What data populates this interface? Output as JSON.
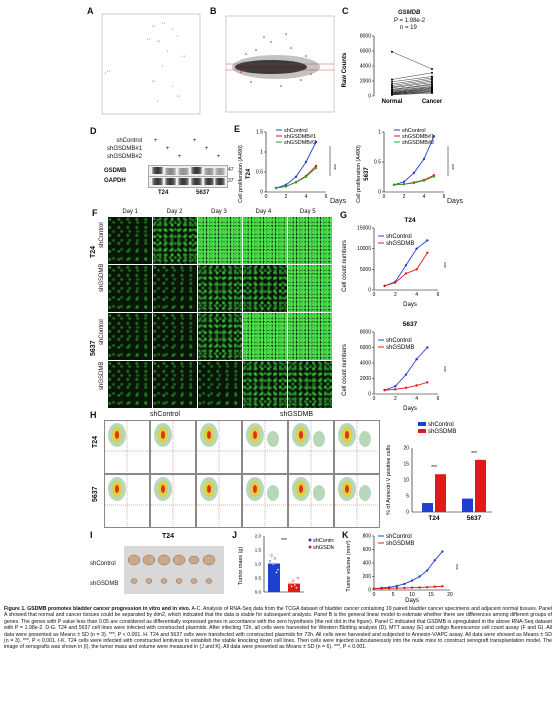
{
  "panels": {
    "A": {
      "label": "A"
    },
    "B": {
      "label": "B"
    },
    "C": {
      "label": "C",
      "title": "GSMDB",
      "pvalue": "P = 1.98e-2",
      "n": "n = 19",
      "ylabel": "Raw Counts",
      "xcats": [
        "Normal",
        "Cancer"
      ],
      "yticks": [
        "0",
        "2000",
        "4000",
        "6000",
        "8000"
      ]
    },
    "D": {
      "label": "D",
      "rows": [
        "shControl",
        "shGSDMB#1",
        "shGSDMB#2"
      ],
      "signs": [
        [
          "+",
          "",
          "",
          "+",
          "",
          ""
        ],
        [
          "",
          "+",
          "",
          "",
          "+",
          ""
        ],
        [
          "",
          "",
          "+",
          "",
          "",
          "+"
        ]
      ],
      "bands": [
        "GSDMB",
        "GAPDH"
      ],
      "kd": [
        "47",
        "37"
      ],
      "cells": [
        "T24",
        "5637"
      ]
    },
    "E": {
      "label": "E",
      "xlabel": "Days",
      "ylabel": "Cell proliferation (A490)",
      "cells": [
        "T24",
        "5637"
      ],
      "legend": [
        "shControl",
        "shGSDMB#1",
        "shGSDMB#2"
      ],
      "stars": "***"
    },
    "F": {
      "label": "F",
      "days": [
        "Day 1",
        "Day 2",
        "Day 3",
        "Day 4",
        "Day 5"
      ],
      "cells": [
        "T24",
        "5637"
      ],
      "groups": [
        "shControl",
        "shGSDMB",
        "shControl",
        "shGSDMB"
      ]
    },
    "G": {
      "label": "G",
      "xlabel": "Days",
      "ylabel": "Cell count numbers",
      "legend": [
        "shControl",
        "shGSDMB"
      ],
      "titles": [
        "T24",
        "5637"
      ],
      "stars": "***"
    },
    "H": {
      "label": "H",
      "groups": [
        "shControl",
        "shGSDMB"
      ],
      "cells": [
        "T24",
        "5637"
      ],
      "ylabel": "% of Annexin V positive cells",
      "legend": [
        "shControl",
        "shGSDMB"
      ],
      "stars": "***"
    },
    "I": {
      "label": "I",
      "title": "T24",
      "rows": [
        "shControl",
        "shGSDMB"
      ]
    },
    "J": {
      "label": "J",
      "ylabel": "Tumor mass (g)",
      "legend": [
        "shControl",
        "shGSDMB"
      ],
      "stars": "***"
    },
    "K": {
      "label": "K",
      "ylabel": "Tumor volume (mm³)",
      "xlabel": "Days",
      "legend": [
        "shControl",
        "shGSDMB"
      ],
      "stars": "***"
    }
  },
  "colors": {
    "control": "#1f3fd0",
    "kd1": "#e01919",
    "kd2": "#2ca02c"
  },
  "chart_data": [
    {
      "id": "C",
      "type": "scatter",
      "title": "GSMDB",
      "categories": [
        "Normal",
        "Cancer"
      ],
      "ylabel": "Raw Counts",
      "ylim": [
        0,
        8000
      ],
      "series": [
        {
          "name": "Normal",
          "values": [
            5900,
            2200,
            1900,
            1600,
            1400,
            1200,
            1100,
            900,
            800,
            700,
            600,
            500,
            450,
            400,
            350,
            300,
            250,
            200,
            150
          ]
        },
        {
          "name": "Cancer",
          "values": [
            3600,
            3100,
            2600,
            2400,
            2200,
            2000,
            1800,
            1600,
            1500,
            1300,
            1200,
            1100,
            1000,
            900,
            800,
            700,
            600,
            500,
            400
          ]
        }
      ]
    },
    {
      "id": "E-T24",
      "type": "line",
      "title": "T24",
      "xlabel": "Days",
      "ylabel": "Cell proliferation (A490)",
      "x": [
        1,
        2,
        3,
        4,
        5
      ],
      "ylim": [
        0,
        1.5
      ],
      "series": [
        {
          "name": "shControl",
          "values": [
            0.1,
            0.18,
            0.38,
            0.75,
            1.25
          ]
        },
        {
          "name": "shGSDMB#1",
          "values": [
            0.1,
            0.14,
            0.25,
            0.4,
            0.65
          ]
        },
        {
          "name": "shGSDMB#2",
          "values": [
            0.1,
            0.14,
            0.24,
            0.38,
            0.6
          ]
        }
      ]
    },
    {
      "id": "E-5637",
      "type": "line",
      "title": "5637",
      "xlabel": "Days",
      "ylabel": "Cell proliferation (A490)",
      "x": [
        1,
        2,
        3,
        4,
        5
      ],
      "ylim": [
        0,
        1.0
      ],
      "series": [
        {
          "name": "shControl",
          "values": [
            0.12,
            0.17,
            0.32,
            0.55,
            0.93
          ]
        },
        {
          "name": "shGSDMB#1",
          "values": [
            0.12,
            0.13,
            0.16,
            0.2,
            0.28
          ]
        },
        {
          "name": "shGSDMB#2",
          "values": [
            0.12,
            0.13,
            0.15,
            0.19,
            0.26
          ]
        }
      ]
    },
    {
      "id": "G-T24",
      "type": "line",
      "title": "T24",
      "xlabel": "Days",
      "ylabel": "Cell count numbers",
      "x": [
        1,
        2,
        3,
        4,
        5
      ],
      "ylim": [
        0,
        15000
      ],
      "series": [
        {
          "name": "shControl",
          "values": [
            1000,
            2000,
            6000,
            10000,
            12000
          ]
        },
        {
          "name": "shGSDMB",
          "values": [
            1000,
            1800,
            4000,
            5000,
            9000
          ]
        }
      ]
    },
    {
      "id": "G-5637",
      "type": "line",
      "title": "5637",
      "xlabel": "Days",
      "ylabel": "Cell count numbers",
      "x": [
        1,
        2,
        3,
        4,
        5
      ],
      "ylim": [
        0,
        8000
      ],
      "series": [
        {
          "name": "shControl",
          "values": [
            500,
            1000,
            2500,
            4500,
            6000
          ]
        },
        {
          "name": "shGSDMB",
          "values": [
            500,
            600,
            800,
            1100,
            1500
          ]
        }
      ]
    },
    {
      "id": "H-bar",
      "type": "bar",
      "categories": [
        "T24",
        "5637"
      ],
      "ylabel": "% of Annexin V positive cells",
      "ylim": [
        0,
        20
      ],
      "series": [
        {
          "name": "shControl",
          "values": [
            2.8,
            4.2
          ]
        },
        {
          "name": "shGSDMB",
          "values": [
            11.8,
            16.3
          ]
        }
      ]
    },
    {
      "id": "J",
      "type": "scatter",
      "categories": [
        "shControl",
        "shGSDMB"
      ],
      "ylabel": "Tumor mass (g)",
      "ylim": [
        0,
        2.0
      ],
      "series": [
        {
          "name": "shControl",
          "values": [
            1.1,
            1.3,
            1.0,
            1.2,
            0.7,
            0.8
          ]
        },
        {
          "name": "shGSDMB",
          "values": [
            0.3,
            0.2,
            0.4,
            0.25,
            0.15,
            0.5
          ]
        }
      ]
    },
    {
      "id": "K",
      "type": "line",
      "xlabel": "Days",
      "ylabel": "Tumor volume (mm³)",
      "x": [
        0,
        2,
        4,
        6,
        8,
        10,
        12,
        14,
        16,
        18
      ],
      "ylim": [
        0,
        800
      ],
      "series": [
        {
          "name": "shControl",
          "values": [
            20,
            30,
            40,
            60,
            90,
            140,
            200,
            290,
            440,
            570
          ]
        },
        {
          "name": "shGSDMB",
          "values": [
            20,
            22,
            25,
            28,
            30,
            35,
            38,
            42,
            48,
            55
          ]
        }
      ]
    }
  ],
  "caption": {
    "title": "Figure 1. GSDMB promotes bladder cancer progression in vitro and in vivo.",
    "body1": " A-C. Analysis of RNA-Seq data from the TCGA dataset of bladder cancer containing 19 paired bladder cancer specimens and adjacent normal tissues. Panel A showed that normal and cancer tissues could be separated by dim2, which indicated that the data is stable for subsequent analysis. Panel B is the general linear model to estimate whether there are differences among different groups of genes. The genes with P value less than 0.05 are considered as differentially expressed genes in accordance with the zero hypothesis (the red dot in the figure). Panel C indicated that GSDMB is upregulated in the above RNA-Seq dataset with P = 1.98e-2.",
    "body2": " D-G. T24 and 5637 cell lines were infected with constructed plasmids. After infecting 72h, all cells were harvested for Western Blotting analysis (D), MTT assay (E) and celigo fluorescence cell count assay (F and G). All data were presented as Means ± SD (n = 3). ***, P < 0.001. H. T24 and 5637 cells were transfected with constructed plasmids for 72h. All cells were harvested and subjected to Annexin-V/APC assay. All data were showed as Means ± SD (n = 3). ***, P < 0.001. I-K. T24 cells were infected with constructed lentivirus to establish the stable knocking down cell lines. Then cells were injected subcutaneously into the nude mice to construct xenograft transplantation model. The image of xenografts was shown in (I), the tumor mass and volume were measured in (J and K). All data were presented as Means ± SD (n = 6). ***, P < 0.001."
  }
}
